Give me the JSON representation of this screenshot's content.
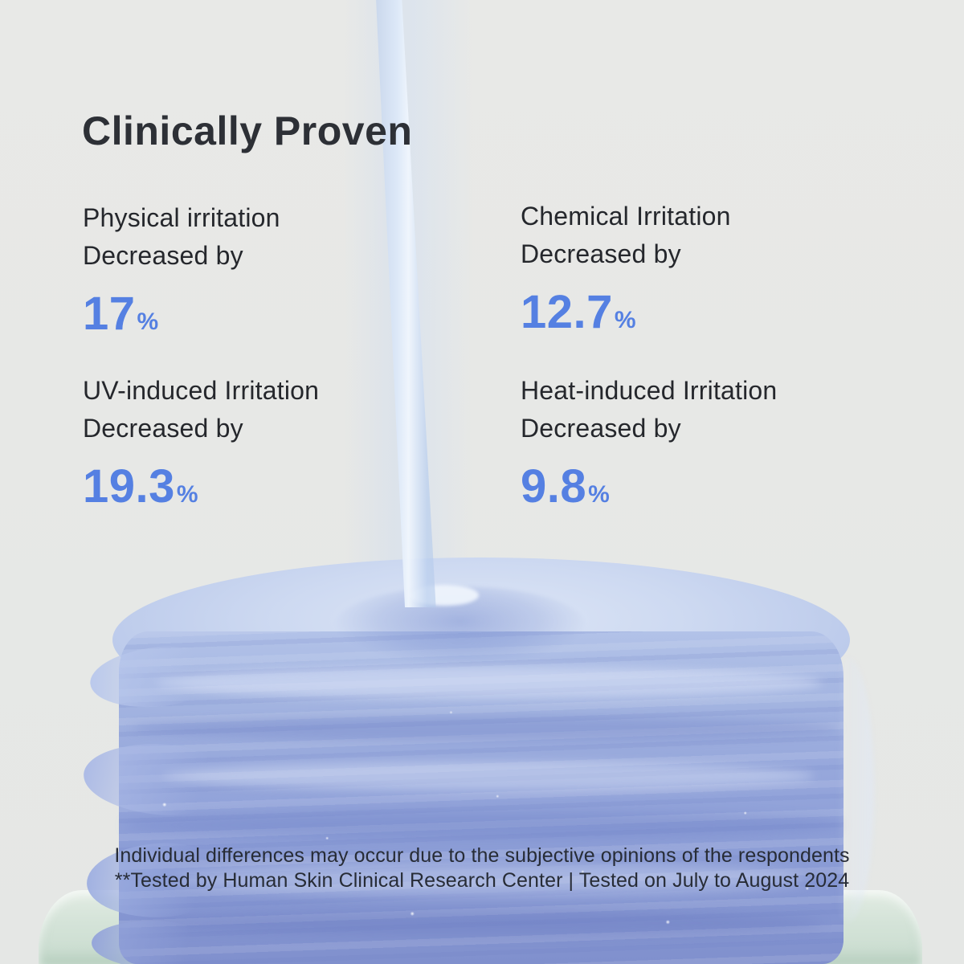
{
  "colors": {
    "accent": "#5580e2",
    "title-color": "#2d3036",
    "body-color": "#25272c",
    "footnote-color": "#272c36",
    "pad-blue": "#8fa0d8",
    "background": "#e7e8e6",
    "jar-green": "#d4e3d8"
  },
  "title": "Clinically Proven",
  "stats": [
    {
      "label_line1": "Physical irritation",
      "label_line2": "Decreased by",
      "value": "17",
      "unit": "%"
    },
    {
      "label_line1": "Chemical Irritation",
      "label_line2": "Decreased by",
      "value": "12.7",
      "unit": "%"
    },
    {
      "label_line1": "UV-induced Irritation",
      "label_line2": "Decreased by",
      "value": "19.3",
      "unit": "%"
    },
    {
      "label_line1": "Heat-induced Irritation",
      "label_line2": "Decreased by",
      "value": "9.8",
      "unit": "%"
    }
  ],
  "footnote": {
    "line1": "Individual differences may occur due to the subjective opinions of the respondents",
    "line2": "**Tested by Human Skin Clinical Research Center | Tested on July to August 2024"
  }
}
